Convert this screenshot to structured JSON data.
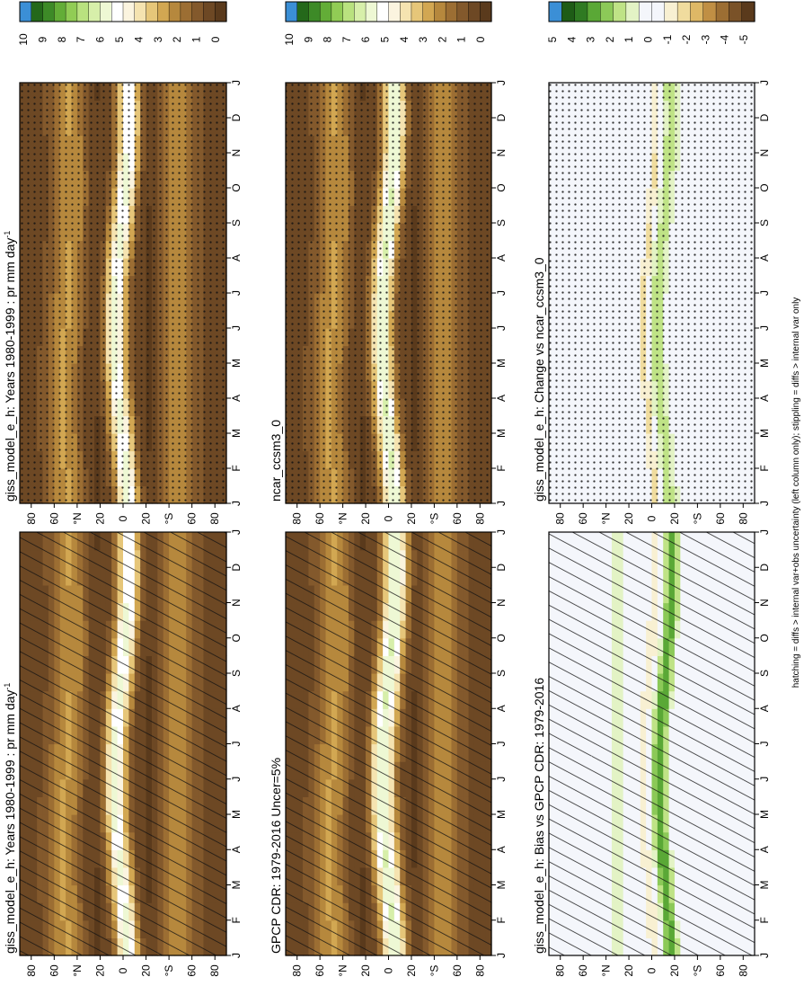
{
  "figure": {
    "footer": "hatching = diffs > internal var+obs uncertainty (left column only); stippling = diffs > internal var only",
    "colors": {
      "brown_dark": "#5a3a1c",
      "tan": "#d6a84c",
      "cream": "#f7e9b8",
      "white": "#fbfbf7",
      "light_green": "#c8ea8e",
      "green": "#6cb33a",
      "dark_green": "#2a6d1c",
      "blue": "#3b8fd6",
      "neutral_white": "#f4f6fb"
    }
  },
  "chart_data": [
    {
      "id": "p1",
      "type": "heatmap",
      "title": "giss_model_e_h: Years 1980-1999 : pr mm day",
      "title_unit_sup": "-1",
      "months": [
        "J",
        "F",
        "M",
        "A",
        "M",
        "J",
        "J",
        "A",
        "S",
        "O",
        "N",
        "D",
        "J"
      ],
      "lat_ticks": [
        "80",
        "60",
        "°N",
        "20",
        "0",
        "20",
        "°S",
        "60",
        "80"
      ],
      "lat_range": [
        -90,
        90
      ],
      "colorbar": {
        "labels": [
          "10",
          "9",
          "8",
          "7",
          "6",
          "5",
          "4",
          "3",
          "2",
          "1",
          "0"
        ],
        "range": [
          0,
          10
        ]
      },
      "overlay": "hatching",
      "grid": true
    },
    {
      "id": "p2",
      "type": "heatmap",
      "title": "giss_model_e_h: Years 1980-1999 : pr mm day",
      "title_unit_sup": "-1",
      "months": [
        "J",
        "F",
        "M",
        "A",
        "M",
        "J",
        "J",
        "A",
        "S",
        "O",
        "N",
        "D",
        "J"
      ],
      "lat_ticks": [
        "80",
        "60",
        "°N",
        "20",
        "0",
        "20",
        "°S",
        "60",
        "80"
      ],
      "lat_range": [
        -90,
        90
      ],
      "colorbar": {
        "labels": [
          "10",
          "9",
          "8",
          "7",
          "6",
          "5",
          "4",
          "3",
          "2",
          "1",
          "0"
        ],
        "range": [
          0,
          10
        ]
      },
      "overlay": "stippling",
      "grid": true
    },
    {
      "id": "p3",
      "type": "heatmap",
      "title": "GPCP CDR: 1979-2016 Uncer=5%",
      "months": [
        "J",
        "F",
        "M",
        "A",
        "M",
        "J",
        "J",
        "A",
        "S",
        "O",
        "N",
        "D",
        "J"
      ],
      "lat_ticks": [
        "80",
        "60",
        "°N",
        "20",
        "0",
        "20",
        "°S",
        "60",
        "80"
      ],
      "lat_range": [
        -90,
        90
      ],
      "colorbar": {
        "labels": [
          "10",
          "9",
          "8",
          "7",
          "6",
          "5",
          "4",
          "3",
          "2",
          "1",
          "0"
        ],
        "range": [
          0,
          10
        ]
      },
      "overlay": "hatching",
      "grid": true
    },
    {
      "id": "p4",
      "type": "heatmap",
      "title": "ncar_ccsm3_0",
      "months": [
        "J",
        "F",
        "M",
        "A",
        "M",
        "J",
        "J",
        "A",
        "S",
        "O",
        "N",
        "D",
        "J"
      ],
      "lat_ticks": [
        "80",
        "60",
        "°N",
        "20",
        "0",
        "20",
        "°S",
        "60",
        "80"
      ],
      "lat_range": [
        -90,
        90
      ],
      "colorbar": {
        "labels": [
          "10",
          "9",
          "8",
          "7",
          "6",
          "5",
          "4",
          "3",
          "2",
          "1",
          "0"
        ],
        "range": [
          0,
          10
        ]
      },
      "overlay": "stippling",
      "grid": true
    },
    {
      "id": "p5",
      "type": "heatmap",
      "title": "giss_model_e_h: Bias vs GPCP CDR: 1979-2016",
      "months": [
        "J",
        "F",
        "M",
        "A",
        "M",
        "J",
        "J",
        "A",
        "S",
        "O",
        "N",
        "D",
        "J"
      ],
      "lat_ticks": [
        "80",
        "60",
        "°N",
        "20",
        "0",
        "20",
        "°S",
        "60",
        "80"
      ],
      "lat_range": [
        -90,
        90
      ],
      "colorbar": {
        "labels": [
          "5",
          "4",
          "3",
          "2",
          "1",
          "0",
          "-1",
          "-2",
          "-3",
          "-4",
          "-5"
        ],
        "range": [
          -5,
          5
        ]
      },
      "overlay": "hatching",
      "grid": true
    },
    {
      "id": "p6",
      "type": "heatmap",
      "title": "giss_model_e_h: Change vs ncar_ccsm3_0",
      "months": [
        "J",
        "F",
        "M",
        "A",
        "M",
        "J",
        "J",
        "A",
        "S",
        "O",
        "N",
        "D",
        "J"
      ],
      "lat_ticks": [
        "80",
        "60",
        "°N",
        "20",
        "0",
        "20",
        "°S",
        "60",
        "80"
      ],
      "lat_range": [
        -90,
        90
      ],
      "colorbar": {
        "labels": [
          "5",
          "4",
          "3",
          "2",
          "1",
          "0",
          "-1",
          "-2",
          "-3",
          "-4",
          "-5"
        ],
        "range": [
          -5,
          5
        ]
      },
      "overlay": "stippling",
      "grid": true
    }
  ]
}
